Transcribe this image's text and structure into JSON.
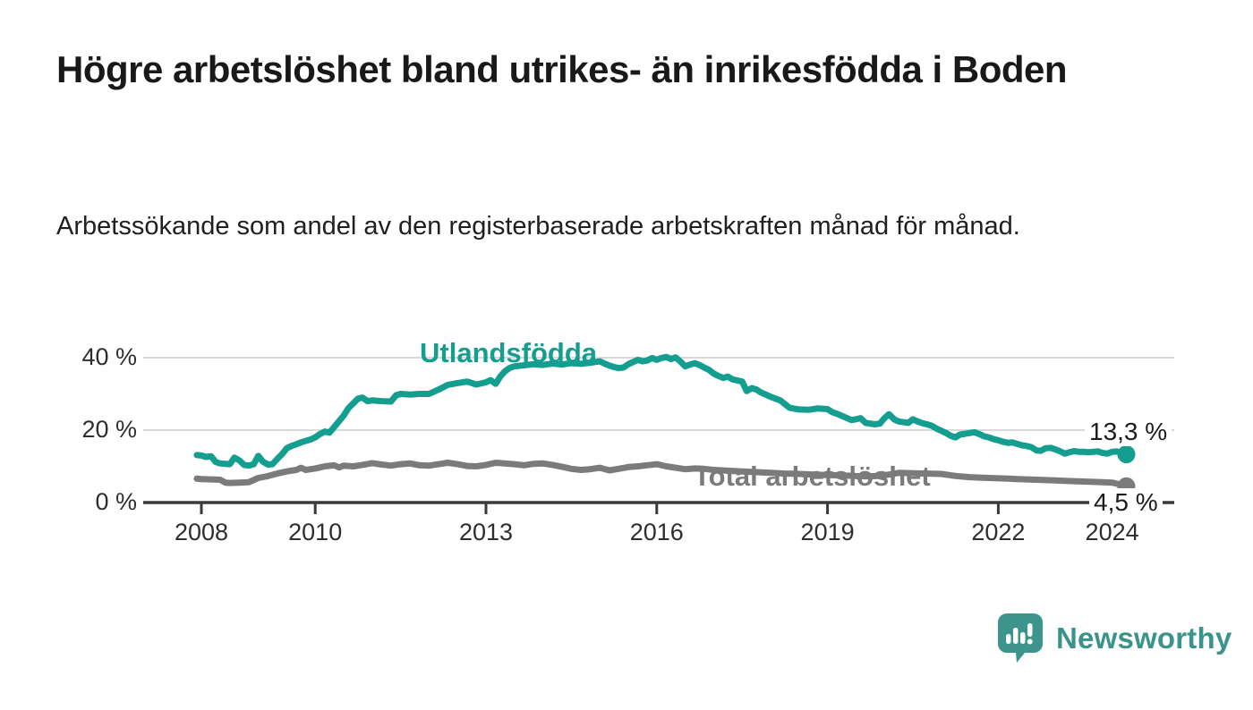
{
  "title": "Högre arbetslöshet bland utrikes- än inrikesfödda i Boden",
  "subtitle": "Arbetssökande som andel av den registerbaserade arbetskraften månad för månad.",
  "branding": {
    "logo_text": "Newsworthy",
    "logo_icon": "bar-chart-speech-bubble-icon"
  },
  "colors": {
    "foreign_born_line": "#149e8f",
    "total_line": "#7b7b7b",
    "grid": "#d9d9d9",
    "axis": "#3a3a3a",
    "axis_text": "#2e2e2e",
    "title_text": "#191919",
    "logo": "#3a948c"
  },
  "chart_data": {
    "type": "line",
    "title": "Högre arbetslöshet bland utrikes- än inrikesfödda i Boden",
    "xlabel": "",
    "ylabel": "Arbetssökande som andel av den registerbaserade arbetskraften",
    "xlim": [
      2007.5,
      2025.2
    ],
    "ylim": [
      0,
      44
    ],
    "grid": "horizontal",
    "legend_position": "inline-labels",
    "x_ticks": [
      {
        "value": 2008,
        "label": "2008"
      },
      {
        "value": 2010,
        "label": "2010"
      },
      {
        "value": 2013,
        "label": "2013"
      },
      {
        "value": 2016,
        "label": "2016"
      },
      {
        "value": 2019,
        "label": "2019"
      },
      {
        "value": 2022,
        "label": "2022"
      },
      {
        "value": 2024,
        "label": "2024"
      }
    ],
    "y_ticks": [
      {
        "value": 0,
        "label": "0 %"
      },
      {
        "value": 20,
        "label": "20 %"
      },
      {
        "value": 40,
        "label": "40 %"
      }
    ],
    "series": [
      {
        "name": "Utlandsfödda",
        "color": "#149e8f",
        "end_label": "13,3 %",
        "end_value": 13.3,
        "points": [
          [
            2007.92,
            13.1
          ],
          [
            2008.0,
            13.0
          ],
          [
            2008.08,
            12.6
          ],
          [
            2008.17,
            12.8
          ],
          [
            2008.25,
            11.2
          ],
          [
            2008.33,
            10.8
          ],
          [
            2008.42,
            10.7
          ],
          [
            2008.5,
            10.6
          ],
          [
            2008.58,
            12.4
          ],
          [
            2008.67,
            11.6
          ],
          [
            2008.75,
            10.4
          ],
          [
            2008.83,
            10.2
          ],
          [
            2008.92,
            10.6
          ],
          [
            2009.0,
            12.9
          ],
          [
            2009.08,
            11.3
          ],
          [
            2009.17,
            10.5
          ],
          [
            2009.25,
            10.6
          ],
          [
            2009.33,
            12.0
          ],
          [
            2009.42,
            13.4
          ],
          [
            2009.5,
            15.0
          ],
          [
            2009.58,
            15.6
          ],
          [
            2009.67,
            16.1
          ],
          [
            2009.75,
            16.6
          ],
          [
            2009.83,
            17.0
          ],
          [
            2009.92,
            17.4
          ],
          [
            2010.0,
            18.0
          ],
          [
            2010.08,
            18.9
          ],
          [
            2010.17,
            19.6
          ],
          [
            2010.25,
            19.3
          ],
          [
            2010.33,
            20.8
          ],
          [
            2010.42,
            22.5
          ],
          [
            2010.5,
            24.0
          ],
          [
            2010.58,
            26.0
          ],
          [
            2010.67,
            27.4
          ],
          [
            2010.75,
            28.7
          ],
          [
            2010.83,
            29.0
          ],
          [
            2010.92,
            28.0
          ],
          [
            2011.0,
            28.2
          ],
          [
            2011.17,
            28.0
          ],
          [
            2011.33,
            27.9
          ],
          [
            2011.42,
            29.6
          ],
          [
            2011.5,
            30.0
          ],
          [
            2011.67,
            29.8
          ],
          [
            2011.83,
            30.0
          ],
          [
            2012.0,
            30.0
          ],
          [
            2012.17,
            31.2
          ],
          [
            2012.33,
            32.5
          ],
          [
            2012.5,
            33.0
          ],
          [
            2012.67,
            33.4
          ],
          [
            2012.83,
            32.6
          ],
          [
            2013.0,
            33.2
          ],
          [
            2013.08,
            33.8
          ],
          [
            2013.17,
            32.8
          ],
          [
            2013.25,
            34.8
          ],
          [
            2013.33,
            36.2
          ],
          [
            2013.42,
            37.2
          ],
          [
            2013.5,
            37.6
          ],
          [
            2013.67,
            37.9
          ],
          [
            2013.83,
            38.2
          ],
          [
            2014.0,
            38.0
          ],
          [
            2014.17,
            38.4
          ],
          [
            2014.33,
            38.1
          ],
          [
            2014.5,
            38.5
          ],
          [
            2014.67,
            38.3
          ],
          [
            2014.83,
            38.6
          ],
          [
            2015.0,
            39.0
          ],
          [
            2015.08,
            38.4
          ],
          [
            2015.17,
            37.8
          ],
          [
            2015.25,
            37.4
          ],
          [
            2015.33,
            37.1
          ],
          [
            2015.42,
            37.3
          ],
          [
            2015.5,
            38.2
          ],
          [
            2015.58,
            38.8
          ],
          [
            2015.67,
            39.4
          ],
          [
            2015.75,
            39.0
          ],
          [
            2015.83,
            39.2
          ],
          [
            2015.92,
            39.9
          ],
          [
            2016.0,
            39.4
          ],
          [
            2016.08,
            39.9
          ],
          [
            2016.17,
            40.2
          ],
          [
            2016.25,
            39.6
          ],
          [
            2016.33,
            40.1
          ],
          [
            2016.42,
            38.9
          ],
          [
            2016.5,
            37.6
          ],
          [
            2016.58,
            38.1
          ],
          [
            2016.67,
            38.5
          ],
          [
            2016.75,
            38.0
          ],
          [
            2016.83,
            37.3
          ],
          [
            2016.92,
            36.6
          ],
          [
            2017.0,
            35.6
          ],
          [
            2017.08,
            35.0
          ],
          [
            2017.17,
            34.4
          ],
          [
            2017.25,
            34.8
          ],
          [
            2017.33,
            34.0
          ],
          [
            2017.42,
            33.7
          ],
          [
            2017.5,
            33.4
          ],
          [
            2017.58,
            30.8
          ],
          [
            2017.67,
            31.6
          ],
          [
            2017.75,
            31.2
          ],
          [
            2017.83,
            30.4
          ],
          [
            2017.92,
            29.8
          ],
          [
            2018.0,
            29.2
          ],
          [
            2018.17,
            28.2
          ],
          [
            2018.33,
            26.2
          ],
          [
            2018.5,
            25.7
          ],
          [
            2018.67,
            25.6
          ],
          [
            2018.83,
            26.0
          ],
          [
            2019.0,
            25.8
          ],
          [
            2019.08,
            25.0
          ],
          [
            2019.17,
            24.5
          ],
          [
            2019.33,
            23.4
          ],
          [
            2019.42,
            22.8
          ],
          [
            2019.5,
            23.0
          ],
          [
            2019.58,
            23.3
          ],
          [
            2019.67,
            22.0
          ],
          [
            2019.83,
            21.6
          ],
          [
            2019.92,
            21.8
          ],
          [
            2020.0,
            23.3
          ],
          [
            2020.08,
            24.4
          ],
          [
            2020.17,
            23.0
          ],
          [
            2020.25,
            22.4
          ],
          [
            2020.33,
            22.2
          ],
          [
            2020.42,
            22.0
          ],
          [
            2020.5,
            23.0
          ],
          [
            2020.58,
            22.4
          ],
          [
            2020.67,
            21.9
          ],
          [
            2020.75,
            21.6
          ],
          [
            2020.83,
            21.2
          ],
          [
            2020.92,
            20.4
          ],
          [
            2021.0,
            19.8
          ],
          [
            2021.08,
            19.2
          ],
          [
            2021.17,
            18.4
          ],
          [
            2021.25,
            18.0
          ],
          [
            2021.33,
            18.8
          ],
          [
            2021.42,
            19.0
          ],
          [
            2021.5,
            19.2
          ],
          [
            2021.58,
            19.4
          ],
          [
            2021.67,
            18.9
          ],
          [
            2021.75,
            18.3
          ],
          [
            2021.83,
            18.0
          ],
          [
            2021.92,
            17.5
          ],
          [
            2022.0,
            17.2
          ],
          [
            2022.08,
            16.8
          ],
          [
            2022.17,
            16.5
          ],
          [
            2022.25,
            16.6
          ],
          [
            2022.33,
            16.2
          ],
          [
            2022.42,
            15.8
          ],
          [
            2022.5,
            15.6
          ],
          [
            2022.58,
            15.3
          ],
          [
            2022.67,
            14.4
          ],
          [
            2022.75,
            14.3
          ],
          [
            2022.83,
            15.0
          ],
          [
            2022.92,
            15.1
          ],
          [
            2023.0,
            14.7
          ],
          [
            2023.08,
            14.2
          ],
          [
            2023.17,
            13.5
          ],
          [
            2023.25,
            13.9
          ],
          [
            2023.33,
            14.2
          ],
          [
            2023.42,
            14.0
          ],
          [
            2023.5,
            14.0
          ],
          [
            2023.58,
            13.9
          ],
          [
            2023.67,
            14.0
          ],
          [
            2023.75,
            14.1
          ],
          [
            2023.83,
            13.7
          ],
          [
            2023.92,
            13.5
          ],
          [
            2024.0,
            14.0
          ],
          [
            2024.08,
            14.1
          ],
          [
            2024.17,
            13.7
          ],
          [
            2024.25,
            13.3
          ]
        ]
      },
      {
        "name": "Total arbetslöshet",
        "color": "#7b7b7b",
        "end_label": "4,5 %",
        "end_value": 4.5,
        "points": [
          [
            2007.92,
            6.6
          ],
          [
            2008.0,
            6.5
          ],
          [
            2008.17,
            6.4
          ],
          [
            2008.33,
            6.3
          ],
          [
            2008.42,
            5.5
          ],
          [
            2008.5,
            5.4
          ],
          [
            2008.67,
            5.5
          ],
          [
            2008.83,
            5.6
          ],
          [
            2009.0,
            6.8
          ],
          [
            2009.17,
            7.3
          ],
          [
            2009.33,
            8.0
          ],
          [
            2009.5,
            8.6
          ],
          [
            2009.67,
            9.0
          ],
          [
            2009.75,
            9.6
          ],
          [
            2009.83,
            9.0
          ],
          [
            2010.0,
            9.4
          ],
          [
            2010.17,
            10.0
          ],
          [
            2010.33,
            10.3
          ],
          [
            2010.42,
            9.7
          ],
          [
            2010.5,
            10.2
          ],
          [
            2010.67,
            10.0
          ],
          [
            2010.83,
            10.4
          ],
          [
            2011.0,
            10.9
          ],
          [
            2011.17,
            10.5
          ],
          [
            2011.33,
            10.2
          ],
          [
            2011.5,
            10.6
          ],
          [
            2011.67,
            10.8
          ],
          [
            2011.83,
            10.3
          ],
          [
            2012.0,
            10.2
          ],
          [
            2012.17,
            10.6
          ],
          [
            2012.33,
            11.0
          ],
          [
            2012.5,
            10.6
          ],
          [
            2012.67,
            10.1
          ],
          [
            2012.83,
            10.0
          ],
          [
            2013.0,
            10.4
          ],
          [
            2013.17,
            11.0
          ],
          [
            2013.33,
            10.8
          ],
          [
            2013.5,
            10.6
          ],
          [
            2013.67,
            10.3
          ],
          [
            2013.83,
            10.7
          ],
          [
            2014.0,
            10.8
          ],
          [
            2014.17,
            10.4
          ],
          [
            2014.33,
            9.9
          ],
          [
            2014.5,
            9.3
          ],
          [
            2014.67,
            9.0
          ],
          [
            2014.83,
            9.2
          ],
          [
            2015.0,
            9.6
          ],
          [
            2015.17,
            8.9
          ],
          [
            2015.33,
            9.3
          ],
          [
            2015.5,
            9.8
          ],
          [
            2015.67,
            10.0
          ],
          [
            2015.83,
            10.3
          ],
          [
            2016.0,
            10.6
          ],
          [
            2016.17,
            10.0
          ],
          [
            2016.33,
            9.6
          ],
          [
            2016.5,
            9.2
          ],
          [
            2016.67,
            9.4
          ],
          [
            2016.83,
            9.3
          ],
          [
            2017.0,
            9.0
          ],
          [
            2017.25,
            8.8
          ],
          [
            2017.5,
            8.6
          ],
          [
            2017.75,
            8.4
          ],
          [
            2018.0,
            8.2
          ],
          [
            2018.25,
            8.0
          ],
          [
            2018.5,
            7.9
          ],
          [
            2018.75,
            7.7
          ],
          [
            2019.0,
            7.6
          ],
          [
            2019.25,
            7.5
          ],
          [
            2019.5,
            7.3
          ],
          [
            2019.75,
            7.2
          ],
          [
            2020.0,
            7.5
          ],
          [
            2020.25,
            8.2
          ],
          [
            2020.5,
            8.1
          ],
          [
            2020.75,
            8.0
          ],
          [
            2021.0,
            7.9
          ],
          [
            2021.17,
            7.5
          ],
          [
            2021.33,
            7.2
          ],
          [
            2021.5,
            7.0
          ],
          [
            2021.67,
            6.9
          ],
          [
            2021.83,
            6.8
          ],
          [
            2022.0,
            6.7
          ],
          [
            2022.17,
            6.6
          ],
          [
            2022.33,
            6.5
          ],
          [
            2022.5,
            6.4
          ],
          [
            2022.67,
            6.3
          ],
          [
            2022.83,
            6.2
          ],
          [
            2023.0,
            6.1
          ],
          [
            2023.17,
            6.0
          ],
          [
            2023.33,
            5.9
          ],
          [
            2023.5,
            5.8
          ],
          [
            2023.67,
            5.7
          ],
          [
            2023.83,
            5.6
          ],
          [
            2024.0,
            5.5
          ],
          [
            2024.08,
            5.2
          ],
          [
            2024.17,
            4.8
          ],
          [
            2024.25,
            4.5
          ]
        ]
      }
    ]
  }
}
